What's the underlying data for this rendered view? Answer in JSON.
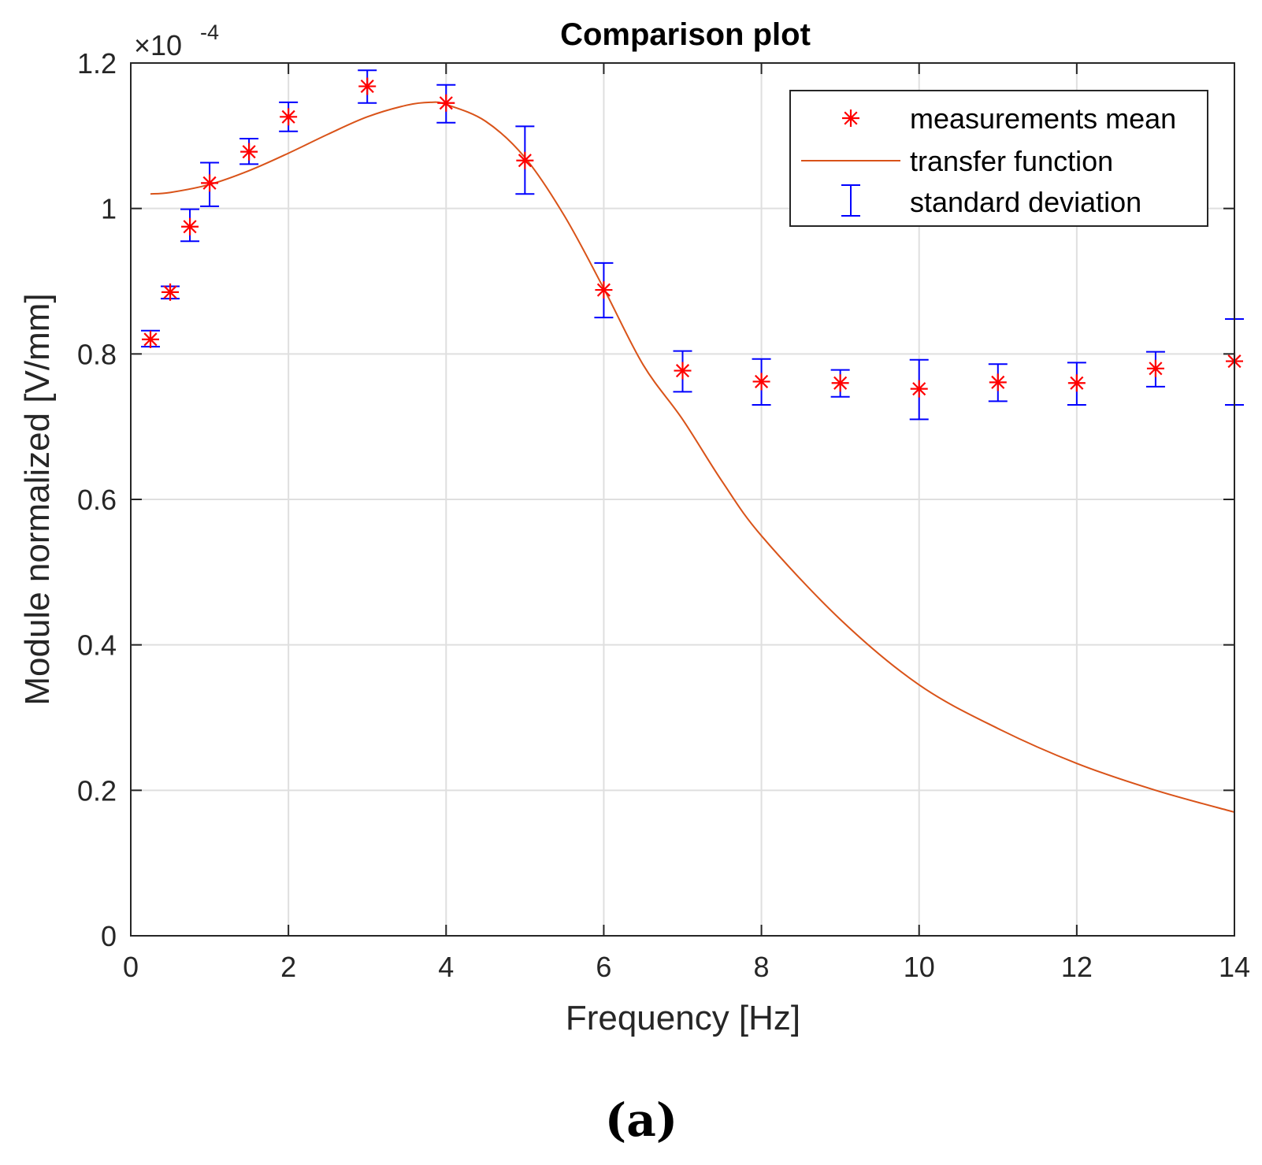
{
  "chart_data": {
    "type": "scatter",
    "title": "Comparison plot",
    "xlabel": "Frequency [Hz]",
    "ylabel": "Module normalized [V/mm]",
    "exponent_label": "×10",
    "exponent_power": "-4",
    "caption": "(a)",
    "xlim": [
      0,
      14
    ],
    "ylim": [
      0,
      1.2
    ],
    "x_ticks": [
      0,
      2,
      4,
      6,
      8,
      10,
      12,
      14
    ],
    "x_tick_labels": [
      "0",
      "2",
      "4",
      "6",
      "8",
      "10",
      "12",
      "14"
    ],
    "y_ticks": [
      0,
      0.2,
      0.4,
      0.6,
      0.8,
      1.0,
      1.2
    ],
    "y_tick_labels": [
      "0",
      "0.2",
      "0.4",
      "0.6",
      "0.8",
      "1",
      "1.2"
    ],
    "grid": true,
    "legend_position": "top-right",
    "series": [
      {
        "name": "measurements mean",
        "kind": "markers",
        "marker": "asterisk",
        "color": "#ff0000",
        "x": [
          0.25,
          0.5,
          0.75,
          1,
          1.5,
          2,
          3,
          4,
          5,
          6,
          7,
          8,
          9,
          10,
          11,
          12,
          13,
          14
        ],
        "y": [
          0.82,
          0.885,
          0.975,
          1.035,
          1.078,
          1.126,
          1.168,
          1.145,
          1.066,
          0.888,
          0.777,
          0.762,
          0.76,
          0.752,
          0.761,
          0.76,
          0.78,
          0.79
        ]
      },
      {
        "name": "transfer function",
        "kind": "line",
        "color": "#d95319",
        "x": [
          0.25,
          0.5,
          1,
          1.5,
          2,
          2.5,
          3,
          3.5,
          3.8,
          4,
          4.5,
          5,
          5.5,
          6,
          6.5,
          7,
          7.5,
          8,
          9,
          10,
          11,
          12,
          13,
          14
        ],
        "y": [
          1.02,
          1.022,
          1.033,
          1.052,
          1.076,
          1.102,
          1.126,
          1.142,
          1.146,
          1.143,
          1.12,
          1.07,
          0.99,
          0.89,
          0.785,
          0.71,
          0.625,
          0.55,
          0.435,
          0.345,
          0.285,
          0.237,
          0.2,
          0.17
        ]
      },
      {
        "name": "standard deviation",
        "kind": "errorbar",
        "color": "#0000ff",
        "x": [
          0.25,
          0.5,
          0.75,
          1,
          1.5,
          2,
          3,
          4,
          5,
          6,
          7,
          8,
          9,
          10,
          11,
          12,
          13,
          14
        ],
        "low": [
          0.81,
          0.876,
          0.955,
          1.003,
          1.061,
          1.106,
          1.145,
          1.118,
          1.02,
          0.85,
          0.748,
          0.73,
          0.741,
          0.71,
          0.735,
          0.73,
          0.755,
          0.73
        ],
        "high": [
          0.832,
          0.893,
          0.999,
          1.063,
          1.096,
          1.146,
          1.19,
          1.17,
          1.113,
          0.925,
          0.804,
          0.793,
          0.778,
          0.792,
          0.786,
          0.788,
          0.803,
          0.848
        ]
      }
    ]
  }
}
